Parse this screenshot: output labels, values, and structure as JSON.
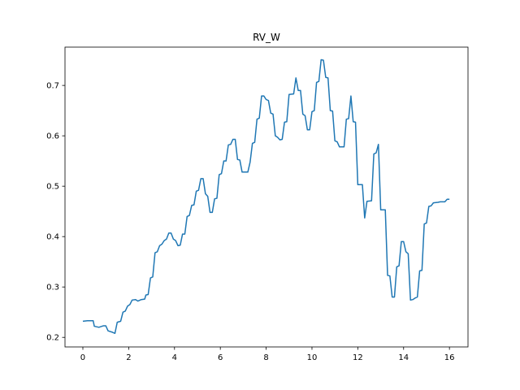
{
  "chart_data": {
    "type": "line",
    "title": "RV_W",
    "x": [
      0,
      0.2,
      0.45,
      0.5,
      0.7,
      0.9,
      1.0,
      1.1,
      1.3,
      1.4,
      1.5,
      1.65,
      1.75,
      1.85,
      1.95,
      2.05,
      2.15,
      2.3,
      2.4,
      2.55,
      2.7,
      2.75,
      2.85,
      2.95,
      3.05,
      3.15,
      3.25,
      3.35,
      3.45,
      3.55,
      3.65,
      3.75,
      3.85,
      3.95,
      4.05,
      4.15,
      4.25,
      4.35,
      4.45,
      4.55,
      4.65,
      4.75,
      4.85,
      4.95,
      5.05,
      5.15,
      5.25,
      5.35,
      5.45,
      5.55,
      5.65,
      5.75,
      5.85,
      5.95,
      6.05,
      6.15,
      6.25,
      6.35,
      6.45,
      6.55,
      6.65,
      6.75,
      6.85,
      6.95,
      7.2,
      7.3,
      7.4,
      7.5,
      7.6,
      7.7,
      7.8,
      7.9,
      8.0,
      8.1,
      8.2,
      8.3,
      8.4,
      8.5,
      8.6,
      8.7,
      8.8,
      8.9,
      9.0,
      9.2,
      9.3,
      9.4,
      9.5,
      9.6,
      9.7,
      9.8,
      9.9,
      10.0,
      10.1,
      10.2,
      10.3,
      10.4,
      10.5,
      10.6,
      10.7,
      10.8,
      10.9,
      11.0,
      11.1,
      11.2,
      11.4,
      11.5,
      11.6,
      11.7,
      11.8,
      11.9,
      12.0,
      12.2,
      12.3,
      12.4,
      12.6,
      12.7,
      12.8,
      12.9,
      13.0,
      13.2,
      13.3,
      13.4,
      13.5,
      13.6,
      13.7,
      13.8,
      13.9,
      14.0,
      14.1,
      14.2,
      14.3,
      14.4,
      14.5,
      14.6,
      14.7,
      14.8,
      14.9,
      15.0,
      15.1,
      15.2,
      15.3,
      15.5,
      15.6,
      15.8,
      15.9,
      16.0
    ],
    "values": [
      0.232,
      0.233,
      0.233,
      0.222,
      0.22,
      0.223,
      0.223,
      0.213,
      0.21,
      0.208,
      0.23,
      0.232,
      0.25,
      0.252,
      0.262,
      0.265,
      0.274,
      0.275,
      0.272,
      0.275,
      0.276,
      0.284,
      0.285,
      0.318,
      0.32,
      0.368,
      0.37,
      0.382,
      0.385,
      0.392,
      0.395,
      0.407,
      0.407,
      0.395,
      0.392,
      0.382,
      0.383,
      0.405,
      0.405,
      0.44,
      0.442,
      0.462,
      0.463,
      0.49,
      0.492,
      0.515,
      0.515,
      0.485,
      0.48,
      0.448,
      0.448,
      0.475,
      0.476,
      0.523,
      0.525,
      0.55,
      0.55,
      0.582,
      0.583,
      0.593,
      0.593,
      0.553,
      0.552,
      0.528,
      0.528,
      0.548,
      0.585,
      0.587,
      0.633,
      0.635,
      0.679,
      0.679,
      0.672,
      0.67,
      0.645,
      0.643,
      0.6,
      0.597,
      0.592,
      0.593,
      0.627,
      0.628,
      0.682,
      0.683,
      0.715,
      0.69,
      0.69,
      0.643,
      0.64,
      0.612,
      0.612,
      0.648,
      0.65,
      0.706,
      0.708,
      0.751,
      0.75,
      0.716,
      0.715,
      0.65,
      0.649,
      0.59,
      0.588,
      0.578,
      0.578,
      0.633,
      0.634,
      0.679,
      0.628,
      0.627,
      0.503,
      0.503,
      0.437,
      0.47,
      0.471,
      0.564,
      0.566,
      0.583,
      0.453,
      0.453,
      0.323,
      0.322,
      0.28,
      0.28,
      0.34,
      0.342,
      0.39,
      0.39,
      0.37,
      0.366,
      0.274,
      0.275,
      0.278,
      0.28,
      0.332,
      0.333,
      0.425,
      0.427,
      0.46,
      0.461,
      0.467,
      0.468,
      0.469,
      0.469,
      0.474,
      0.474
    ],
    "color": "#1f77b4",
    "xlim": [
      -0.78,
      16.81
    ],
    "xticks": [
      0,
      2,
      4,
      6,
      8,
      10,
      12,
      14,
      16
    ],
    "ylim": [
      0.181,
      0.776
    ],
    "yticks": [
      0.2,
      0.3,
      0.4,
      0.5,
      0.6,
      0.7
    ]
  }
}
